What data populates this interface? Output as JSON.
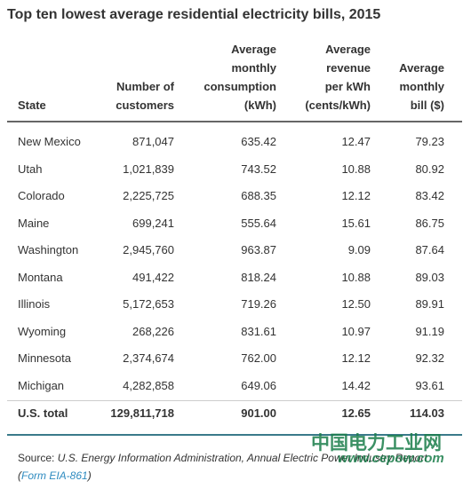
{
  "title": "Top ten lowest average residential electricity bills, 2015",
  "table": {
    "header": [
      [
        "State"
      ],
      [
        "Number of",
        "customers"
      ],
      [
        "Average",
        "monthly",
        "consumption",
        "(kWh)"
      ],
      [
        "Average",
        "revenue",
        "per kWh",
        "(cents/kWh)"
      ],
      [
        "Average",
        "monthly",
        "bill ($)"
      ]
    ],
    "rows": [
      [
        "New Mexico",
        "871,047",
        "635.42",
        "12.47",
        "79.23"
      ],
      [
        "Utah",
        "1,021,839",
        "743.52",
        "10.88",
        "80.92"
      ],
      [
        "Colorado",
        "2,225,725",
        "688.35",
        "12.12",
        "83.42"
      ],
      [
        "Maine",
        "699,241",
        "555.64",
        "15.61",
        "86.75"
      ],
      [
        "Washington",
        "2,945,760",
        "963.87",
        "9.09",
        "87.64"
      ],
      [
        "Montana",
        "491,422",
        "818.24",
        "10.88",
        "89.03"
      ],
      [
        "Illinois",
        "5,172,653",
        "719.26",
        "12.50",
        "89.91"
      ],
      [
        "Wyoming",
        "268,226",
        "831.61",
        "10.97",
        "91.19"
      ],
      [
        "Minnesota",
        "2,374,674",
        "762.00",
        "12.12",
        "92.32"
      ],
      [
        "Michigan",
        "4,282,858",
        "649.06",
        "14.42",
        "93.61"
      ]
    ],
    "total": [
      "U.S. total",
      "129,811,718",
      "901.00",
      "12.65",
      "114.03"
    ]
  },
  "source": {
    "label": "Source:",
    "text": "U.S. Energy Information Administration, Annual Electric Power Industry Report (",
    "link": "Form EIA-861",
    "end": ")"
  },
  "watermark": {
    "title": "中国电力工业网",
    "url": "www.cepow.com"
  }
}
